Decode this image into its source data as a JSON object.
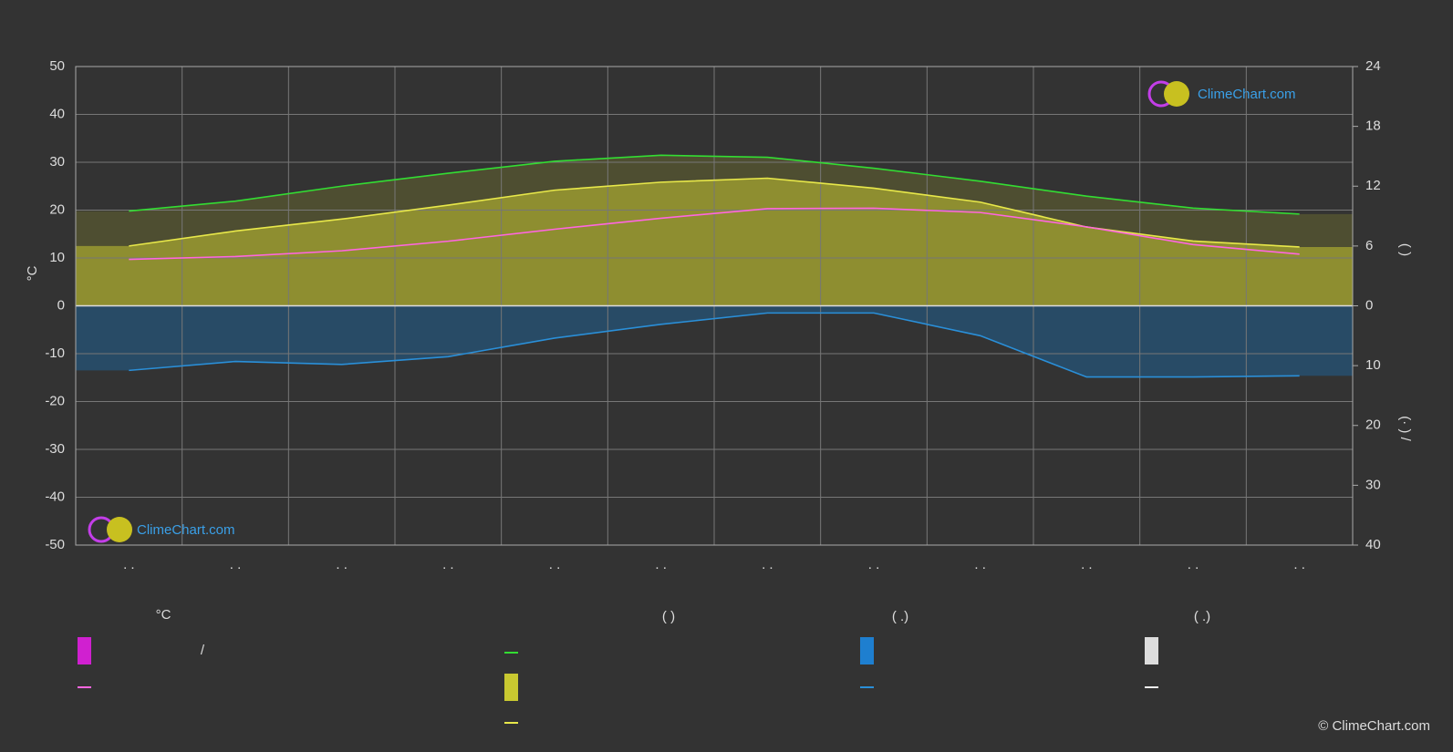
{
  "chart_data": {
    "type": "line",
    "ylabel": "°C",
    "y2label": "(          )",
    "y3label": "(·   )   /",
    "categories": [
      ". .",
      ". .",
      ". .",
      ". .",
      ". .",
      ". .",
      ". .",
      ". .",
      ". .",
      ". .",
      ". .",
      ". ."
    ],
    "ylim": [
      -50,
      50
    ],
    "yticks": [
      -50,
      -40,
      -30,
      -20,
      -10,
      0,
      10,
      20,
      30,
      40,
      50
    ],
    "y2lim": [
      0,
      24
    ],
    "y2ticks": [
      0,
      6,
      12,
      18,
      24
    ],
    "y3lim": [
      0,
      40
    ],
    "y3ticks": [
      10,
      20,
      30,
      40
    ],
    "grid": true,
    "series": [
      {
        "color": "#33dd33",
        "axis": "y2",
        "values": [
          9.5,
          10.5,
          12,
          13.3,
          14.5,
          15.1,
          14.9,
          13.8,
          12.5,
          11,
          9.8,
          9.2
        ]
      },
      {
        "color": "#e8e84a",
        "axis": "y2",
        "values": [
          6.0,
          7.5,
          8.7,
          10.1,
          11.6,
          12.4,
          12.8,
          11.8,
          10.4,
          7.9,
          6.5,
          5.9
        ]
      },
      {
        "color": "#ff66e0",
        "values": [
          9.7,
          10.3,
          11.5,
          13.5,
          16,
          18.3,
          20.3,
          20.4,
          19.5,
          16.5,
          12.8,
          10.8
        ]
      },
      {
        "color": "#2a8fd8",
        "axis": "y3",
        "values": [
          10.8,
          9.3,
          9.8,
          8.5,
          5.4,
          3.1,
          1.2,
          1.2,
          5,
          11.9,
          11.9,
          11.7
        ]
      }
    ],
    "legend": {
      "headers": [
        "°C",
        "(          )",
        "(   .)",
        "(   .)"
      ],
      "item": "/"
    },
    "watermark": "ClimeChart.com",
    "copyright": "© ClimeChart.com"
  }
}
